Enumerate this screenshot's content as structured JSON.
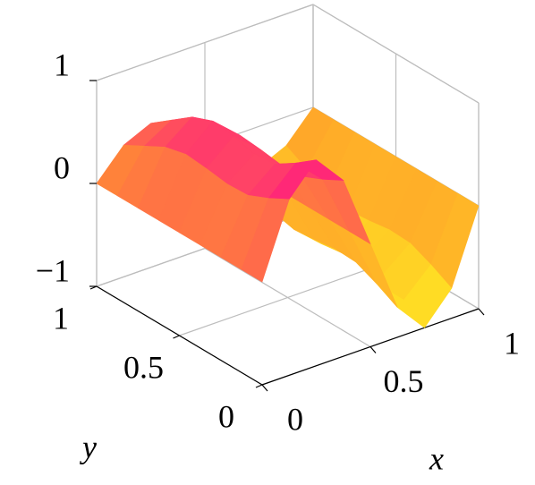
{
  "chart_data": {
    "type": "surface",
    "xlabel": "x",
    "ylabel": "y",
    "x": [
      0,
      0.125,
      0.25,
      0.375,
      0.5,
      0.625,
      0.75,
      0.875,
      1
    ],
    "y": [
      0,
      0.125,
      0.25,
      0.375,
      0.5,
      0.625,
      0.75,
      0.875,
      1
    ],
    "z": [
      [
        0,
        0.71,
        1,
        0.71,
        0,
        -0.71,
        -1,
        -0.71,
        0
      ],
      [
        0,
        0.6,
        0.85,
        0.6,
        0,
        -0.6,
        -0.85,
        -0.6,
        0
      ],
      [
        0,
        0.51,
        0.72,
        0.51,
        0,
        -0.51,
        -0.72,
        -0.51,
        0
      ],
      [
        0,
        0.5,
        0.7,
        0.5,
        0,
        -0.5,
        -0.7,
        -0.5,
        0
      ],
      [
        0,
        0.53,
        0.75,
        0.53,
        0,
        -0.53,
        -0.75,
        -0.53,
        0
      ],
      [
        0,
        0.55,
        0.78,
        0.55,
        0,
        -0.55,
        -0.78,
        -0.55,
        0
      ],
      [
        0,
        0.5,
        0.7,
        0.5,
        0,
        -0.5,
        -0.7,
        -0.5,
        0
      ],
      [
        0,
        0.39,
        0.55,
        0.39,
        0,
        -0.39,
        -0.55,
        -0.39,
        0
      ],
      [
        0,
        0.28,
        0.4,
        0.28,
        0,
        -0.28,
        -0.4,
        -0.28,
        0
      ]
    ],
    "xlim": [
      0,
      1
    ],
    "ylim": [
      0,
      1
    ],
    "zlim": [
      -1,
      1
    ],
    "xticks": [
      0,
      0.5,
      1
    ],
    "yticks": [
      0,
      0.5,
      1
    ],
    "zticks": [
      {
        "value": -1,
        "label": "−1"
      },
      0,
      1
    ],
    "grid": true,
    "colormap": [
      "#ffee22",
      "#ff9a2a",
      "#ff0a8c"
    ]
  }
}
